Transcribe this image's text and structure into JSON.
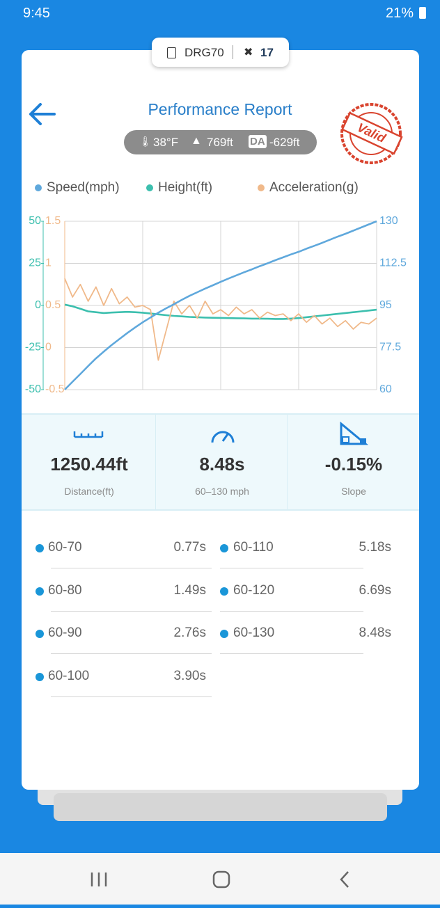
{
  "status_bar": {
    "time": "9:45",
    "battery": "21%"
  },
  "device": {
    "name": "DRG70",
    "satellites": "17"
  },
  "header": {
    "title": "Performance Report",
    "temperature": "38°F",
    "altitude": "769ft",
    "da_badge": "DA",
    "density_altitude": "-629ft",
    "stamp": "Valid"
  },
  "chart_data": {
    "type": "line",
    "series": [
      {
        "name": "Speed(mph)",
        "color": "#5fa8dc",
        "axis": "y2",
        "values": [
          60,
          63.3,
          66.5,
          69.8,
          73,
          75.8,
          78.5,
          81,
          83.5,
          85.8,
          88,
          90,
          92,
          93.8,
          95.5,
          97.3,
          99,
          100.5,
          102,
          103.4,
          104.8,
          106.2,
          107.5,
          108.8,
          110,
          111.3,
          112.5,
          113.8,
          115,
          116.2,
          117.3,
          118.6,
          119.8,
          121,
          122.3,
          123.6,
          124.8,
          126.1,
          127.4,
          128.7,
          130
        ]
      },
      {
        "name": "Height(ft)",
        "color": "#3cbfae",
        "values": [
          0.5,
          -0.5,
          -2,
          -3.5,
          -4,
          -4.5,
          -4.2,
          -4,
          -3.8,
          -4,
          -4.3,
          -4.8,
          -5.3,
          -5.8,
          -6.2,
          -6.5,
          -6.8,
          -7,
          -7.2,
          -7.3,
          -7.4,
          -7.5,
          -7.6,
          -7.7,
          -7.8,
          -7.8,
          -7.9,
          -8,
          -8,
          -7.8,
          -7.5,
          -7,
          -6.5,
          -6,
          -5.5,
          -5,
          -4.5,
          -4,
          -3.5,
          -3,
          -2.5
        ]
      },
      {
        "name": "Acceleration(g)",
        "color": "#f0b98a",
        "axis": "y3",
        "values": [
          0.82,
          0.6,
          0.75,
          0.55,
          0.72,
          0.5,
          0.7,
          0.52,
          0.6,
          0.48,
          0.5,
          0.45,
          -0.15,
          0.2,
          0.55,
          0.4,
          0.5,
          0.35,
          0.55,
          0.4,
          0.45,
          0.38,
          0.48,
          0.4,
          0.45,
          0.35,
          0.42,
          0.38,
          0.4,
          0.32,
          0.4,
          0.3,
          0.38,
          0.28,
          0.35,
          0.25,
          0.32,
          0.22,
          0.3,
          0.28,
          0.35
        ]
      }
    ],
    "ylim": [
      -50,
      50
    ],
    "yticks": [
      50,
      25,
      0,
      -25,
      -50
    ],
    "y2lim": [
      60,
      130
    ],
    "y2ticks": [
      130,
      112.5,
      95,
      77.5,
      60
    ],
    "y3lim": [
      -0.5,
      1.5
    ],
    "y3ticks": [
      1.5,
      1,
      0.5,
      0,
      -0.5
    ],
    "grid": true,
    "legend": "top"
  },
  "stats": [
    {
      "value": "1250.44ft",
      "label": "Distance(ft)"
    },
    {
      "value": "8.48s",
      "label": "60–130 mph"
    },
    {
      "value": "-0.15%",
      "label": "Slope"
    }
  ],
  "splits": {
    "left": [
      {
        "range": "60-70",
        "time": "0.77s"
      },
      {
        "range": "60-80",
        "time": "1.49s"
      },
      {
        "range": "60-90",
        "time": "2.76s"
      },
      {
        "range": "60-100",
        "time": "3.90s"
      }
    ],
    "right": [
      {
        "range": "60-110",
        "time": "5.18s"
      },
      {
        "range": "60-120",
        "time": "6.69s"
      },
      {
        "range": "60-130",
        "time": "8.48s"
      }
    ]
  }
}
